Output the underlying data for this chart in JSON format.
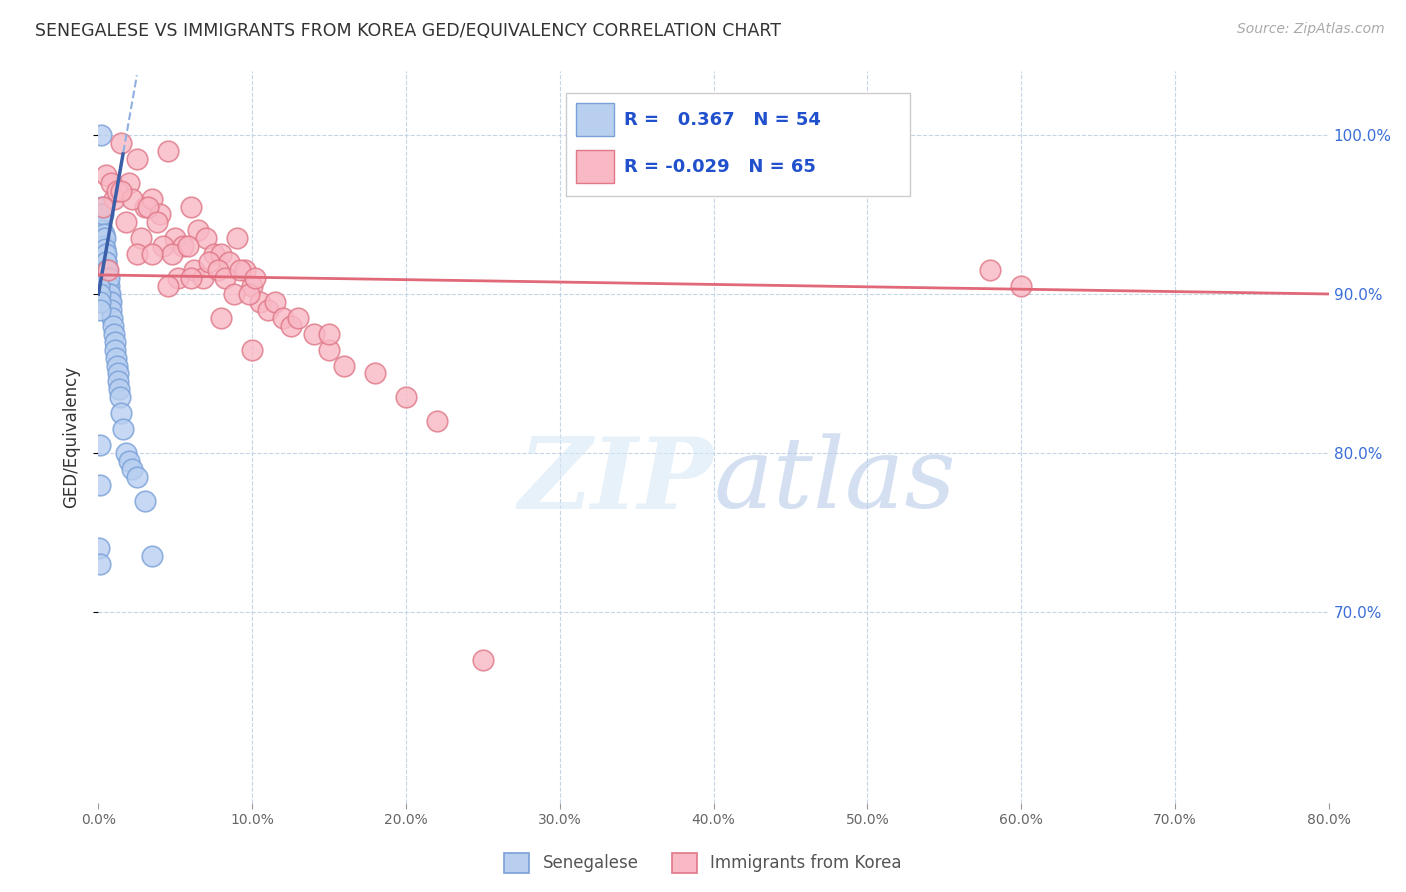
{
  "title": "SENEGALESE VS IMMIGRANTS FROM KOREA GED/EQUIVALENCY CORRELATION CHART",
  "source": "Source: ZipAtlas.com",
  "ylabel": "GED/Equivalency",
  "xmin": 0.0,
  "xmax": 80.0,
  "ymin": 58.0,
  "ymax": 104.0,
  "blue_fill": "#B8CFF0",
  "blue_edge": "#7AA0D8",
  "pink_fill": "#F8B8C4",
  "pink_edge": "#E07888",
  "blue_line_color": "#3A5EA8",
  "blue_dash_color": "#90B0E0",
  "pink_line_color": "#E06878",
  "legend_r1_val": "0.367",
  "legend_n1_val": "54",
  "legend_r2_val": "-0.029",
  "legend_n2_val": "65",
  "senegalese_x": [
    0.05,
    0.08,
    0.1,
    0.12,
    0.15,
    0.18,
    0.2,
    0.22,
    0.25,
    0.28,
    0.3,
    0.32,
    0.35,
    0.38,
    0.4,
    0.42,
    0.45,
    0.48,
    0.5,
    0.52,
    0.55,
    0.58,
    0.6,
    0.65,
    0.68,
    0.7,
    0.72,
    0.75,
    0.78,
    0.82,
    0.85,
    0.9,
    0.95,
    1.0,
    1.05,
    1.1,
    1.15,
    1.2,
    1.25,
    1.3,
    1.35,
    1.4,
    1.5,
    1.6,
    1.8,
    2.0,
    2.2,
    2.5,
    3.0,
    3.5,
    0.05,
    0.08,
    0.1,
    0.12
  ],
  "senegalese_y": [
    74.0,
    73.0,
    78.0,
    80.5,
    95.0,
    91.5,
    100.0,
    95.5,
    94.0,
    93.5,
    95.0,
    93.5,
    93.8,
    93.0,
    93.5,
    92.5,
    92.8,
    92.0,
    92.5,
    92.0,
    91.5,
    91.5,
    91.0,
    90.5,
    90.5,
    91.0,
    90.0,
    90.0,
    89.5,
    89.5,
    89.0,
    88.5,
    88.0,
    87.5,
    87.0,
    86.5,
    86.0,
    85.5,
    85.0,
    84.5,
    84.0,
    83.5,
    82.5,
    81.5,
    80.0,
    79.5,
    79.0,
    78.5,
    77.0,
    73.5,
    90.5,
    90.0,
    89.5,
    89.0
  ],
  "korea_x": [
    0.5,
    1.0,
    1.5,
    2.0,
    2.5,
    3.0,
    3.5,
    4.0,
    4.5,
    5.0,
    5.5,
    6.0,
    6.5,
    7.0,
    7.5,
    8.0,
    8.5,
    9.0,
    9.5,
    10.0,
    10.5,
    11.0,
    11.5,
    12.0,
    12.5,
    13.0,
    14.0,
    15.0,
    16.0,
    18.0,
    0.8,
    1.2,
    1.8,
    2.2,
    2.8,
    3.2,
    3.8,
    4.2,
    4.8,
    5.2,
    5.8,
    6.2,
    6.8,
    7.2,
    7.8,
    8.2,
    8.8,
    9.2,
    9.8,
    10.2,
    0.3,
    0.6,
    1.5,
    2.5,
    3.5,
    4.5,
    6.0,
    8.0,
    10.0,
    20.0,
    22.0,
    25.0,
    58.0,
    60.0,
    15.0
  ],
  "korea_y": [
    97.5,
    96.0,
    99.5,
    97.0,
    98.5,
    95.5,
    96.0,
    95.0,
    99.0,
    93.5,
    93.0,
    95.5,
    94.0,
    93.5,
    92.5,
    92.5,
    92.0,
    93.5,
    91.5,
    90.5,
    89.5,
    89.0,
    89.5,
    88.5,
    88.0,
    88.5,
    87.5,
    86.5,
    85.5,
    85.0,
    97.0,
    96.5,
    94.5,
    96.0,
    93.5,
    95.5,
    94.5,
    93.0,
    92.5,
    91.0,
    93.0,
    91.5,
    91.0,
    92.0,
    91.5,
    91.0,
    90.0,
    91.5,
    90.0,
    91.0,
    95.5,
    91.5,
    96.5,
    92.5,
    92.5,
    90.5,
    91.0,
    88.5,
    86.5,
    83.5,
    82.0,
    67.0,
    91.5,
    90.5,
    87.5
  ]
}
